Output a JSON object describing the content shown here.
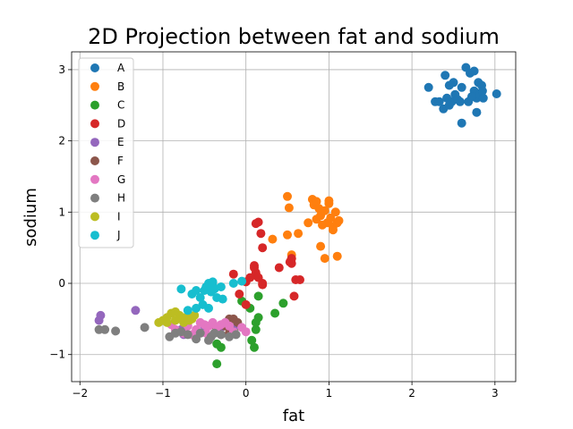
{
  "chart_data": {
    "type": "scatter",
    "title": "2D Projection between fat and sodium",
    "xlabel": "fat",
    "ylabel": "sodium",
    "xlim": [
      -2.1,
      3.25
    ],
    "ylim": [
      -1.38,
      3.25
    ],
    "xticks": [
      -2,
      -1,
      0,
      1,
      2,
      3
    ],
    "yticks": [
      -1,
      0,
      1,
      2,
      3
    ],
    "grid": true,
    "legend_position": "top-left",
    "series": [
      {
        "name": "A",
        "color": "#1f77b4",
        "points": [
          [
            2.2,
            2.75
          ],
          [
            2.28,
            2.55
          ],
          [
            2.33,
            2.55
          ],
          [
            2.38,
            2.45
          ],
          [
            2.4,
            2.92
          ],
          [
            2.42,
            2.6
          ],
          [
            2.45,
            2.78
          ],
          [
            2.48,
            2.55
          ],
          [
            2.5,
            2.82
          ],
          [
            2.52,
            2.65
          ],
          [
            2.55,
            2.58
          ],
          [
            2.58,
            2.55
          ],
          [
            2.6,
            2.75
          ],
          [
            2.6,
            2.25
          ],
          [
            2.65,
            3.03
          ],
          [
            2.68,
            2.55
          ],
          [
            2.7,
            2.95
          ],
          [
            2.75,
            2.98
          ],
          [
            2.75,
            2.7
          ],
          [
            2.78,
            2.6
          ],
          [
            2.78,
            2.4
          ],
          [
            2.8,
            2.82
          ],
          [
            2.82,
            2.65
          ],
          [
            2.84,
            2.78
          ],
          [
            2.85,
            2.7
          ],
          [
            2.86,
            2.6
          ],
          [
            3.02,
            2.66
          ],
          [
            2.45,
            2.5
          ],
          [
            2.72,
            2.62
          ]
        ]
      },
      {
        "name": "B",
        "color": "#ff7f0e",
        "points": [
          [
            0.5,
            1.22
          ],
          [
            0.52,
            1.06
          ],
          [
            0.5,
            0.68
          ],
          [
            0.55,
            0.4
          ],
          [
            0.55,
            0.35
          ],
          [
            0.32,
            0.62
          ],
          [
            0.63,
            0.7
          ],
          [
            0.75,
            0.85
          ],
          [
            0.8,
            1.18
          ],
          [
            0.82,
            1.1
          ],
          [
            0.85,
            1.15
          ],
          [
            0.85,
            0.9
          ],
          [
            0.88,
            1.05
          ],
          [
            0.9,
            0.95
          ],
          [
            0.9,
            0.52
          ],
          [
            0.95,
            0.35
          ],
          [
            0.95,
            1.02
          ],
          [
            0.98,
            0.85
          ],
          [
            1.0,
            1.12
          ],
          [
            1.0,
            1.16
          ],
          [
            1.02,
            0.92
          ],
          [
            1.05,
            0.8
          ],
          [
            1.05,
            0.75
          ],
          [
            1.08,
            1.0
          ],
          [
            1.1,
            0.85
          ],
          [
            1.12,
            0.88
          ],
          [
            1.1,
            0.38
          ],
          [
            0.92,
            0.82
          ]
        ]
      },
      {
        "name": "C",
        "color": "#2ca02c",
        "points": [
          [
            -0.35,
            -1.13
          ],
          [
            -0.3,
            -0.9
          ],
          [
            -0.35,
            -0.85
          ],
          [
            0.07,
            -0.8
          ],
          [
            0.1,
            -0.9
          ],
          [
            0.12,
            -0.65
          ],
          [
            0.12,
            -0.55
          ],
          [
            0.15,
            -0.48
          ],
          [
            0.15,
            -0.18
          ],
          [
            0.35,
            -0.42
          ],
          [
            0.45,
            -0.28
          ],
          [
            -0.05,
            -0.25
          ],
          [
            0.05,
            -0.35
          ],
          [
            -0.1,
            -0.6
          ]
        ]
      },
      {
        "name": "D",
        "color": "#d62728",
        "points": [
          [
            0.12,
            0.84
          ],
          [
            0.15,
            0.86
          ],
          [
            0.18,
            0.7
          ],
          [
            0.2,
            0.5
          ],
          [
            0.1,
            0.25
          ],
          [
            0.12,
            0.15
          ],
          [
            0.15,
            0.08
          ],
          [
            0.05,
            0.08
          ],
          [
            0.0,
            0.02
          ],
          [
            0.0,
            -0.3
          ],
          [
            -0.08,
            -0.15
          ],
          [
            -0.15,
            0.13
          ],
          [
            0.4,
            0.22
          ],
          [
            0.53,
            0.3
          ],
          [
            0.55,
            0.35
          ],
          [
            0.55,
            0.28
          ],
          [
            0.6,
            0.05
          ],
          [
            0.58,
            -0.18
          ],
          [
            0.65,
            0.05
          ],
          [
            0.2,
            0.0
          ],
          [
            0.2,
            -0.02
          ],
          [
            0.1,
            0.22
          ]
        ]
      },
      {
        "name": "E",
        "color": "#9467bd",
        "points": [
          [
            -1.75,
            -0.45
          ],
          [
            -1.77,
            -0.52
          ],
          [
            -1.33,
            -0.38
          ],
          [
            -0.75,
            -0.72
          ],
          [
            -0.78,
            -0.65
          ],
          [
            -0.5,
            -0.6
          ],
          [
            -0.3,
            -0.62
          ],
          [
            -0.1,
            -0.58
          ]
        ]
      },
      {
        "name": "F",
        "color": "#8c564b",
        "points": [
          [
            -0.2,
            -0.5
          ],
          [
            -0.15,
            -0.5
          ],
          [
            -0.25,
            -0.6
          ],
          [
            -0.3,
            -0.72
          ],
          [
            -0.35,
            -0.68
          ],
          [
            -0.1,
            -0.55
          ],
          [
            -0.4,
            -0.58
          ],
          [
            -0.2,
            -0.7
          ]
        ]
      },
      {
        "name": "G",
        "color": "#e377c2",
        "points": [
          [
            -0.9,
            -0.58
          ],
          [
            -0.85,
            -0.65
          ],
          [
            -0.75,
            -0.7
          ],
          [
            -0.7,
            -0.6
          ],
          [
            -0.6,
            -0.65
          ],
          [
            -0.55,
            -0.55
          ],
          [
            -0.5,
            -0.58
          ],
          [
            -0.45,
            -0.6
          ],
          [
            -0.4,
            -0.55
          ],
          [
            -0.35,
            -0.62
          ],
          [
            -0.3,
            -0.58
          ],
          [
            -0.25,
            -0.55
          ],
          [
            -0.2,
            -0.6
          ],
          [
            -0.05,
            -0.62
          ],
          [
            0.0,
            -0.68
          ],
          [
            -0.15,
            -0.68
          ],
          [
            -0.65,
            -0.72
          ],
          [
            -0.48,
            -0.7
          ]
        ]
      },
      {
        "name": "H",
        "color": "#7f7f7f",
        "points": [
          [
            -1.77,
            -0.65
          ],
          [
            -1.7,
            -0.65
          ],
          [
            -1.57,
            -0.67
          ],
          [
            -1.22,
            -0.62
          ],
          [
            -0.92,
            -0.75
          ],
          [
            -0.85,
            -0.7
          ],
          [
            -0.78,
            -0.68
          ],
          [
            -0.7,
            -0.72
          ],
          [
            -0.6,
            -0.78
          ],
          [
            -0.55,
            -0.7
          ],
          [
            -0.45,
            -0.8
          ],
          [
            -0.42,
            -0.75
          ],
          [
            -0.38,
            -0.7
          ],
          [
            -0.3,
            -0.72
          ],
          [
            -0.2,
            -0.75
          ],
          [
            -0.12,
            -0.72
          ]
        ]
      },
      {
        "name": "I",
        "color": "#bcbd22",
        "points": [
          [
            -1.05,
            -0.55
          ],
          [
            -1.0,
            -0.52
          ],
          [
            -0.95,
            -0.48
          ],
          [
            -0.9,
            -0.42
          ],
          [
            -0.85,
            -0.4
          ],
          [
            -0.8,
            -0.45
          ],
          [
            -0.78,
            -0.5
          ],
          [
            -0.75,
            -0.55
          ],
          [
            -0.72,
            -0.48
          ],
          [
            -0.7,
            -0.45
          ],
          [
            -0.68,
            -0.52
          ],
          [
            -0.65,
            -0.5
          ],
          [
            -0.62,
            -0.45
          ],
          [
            -0.95,
            -0.55
          ],
          [
            -0.85,
            -0.52
          ]
        ]
      },
      {
        "name": "J",
        "color": "#17becf",
        "points": [
          [
            -0.78,
            -0.08
          ],
          [
            -0.65,
            -0.15
          ],
          [
            -0.6,
            -0.1
          ],
          [
            -0.55,
            -0.2
          ],
          [
            -0.5,
            -0.1
          ],
          [
            -0.48,
            -0.05
          ],
          [
            -0.45,
            0.0
          ],
          [
            -0.42,
            -0.12
          ],
          [
            -0.4,
            -0.02
          ],
          [
            -0.38,
            -0.08
          ],
          [
            -0.35,
            -0.2
          ],
          [
            -0.3,
            -0.05
          ],
          [
            -0.28,
            -0.22
          ],
          [
            -0.52,
            -0.3
          ],
          [
            -0.45,
            -0.35
          ],
          [
            -0.6,
            -0.35
          ],
          [
            -0.7,
            -0.38
          ],
          [
            -0.15,
            0.0
          ],
          [
            -0.05,
            0.03
          ],
          [
            -0.4,
            0.02
          ]
        ]
      }
    ]
  }
}
